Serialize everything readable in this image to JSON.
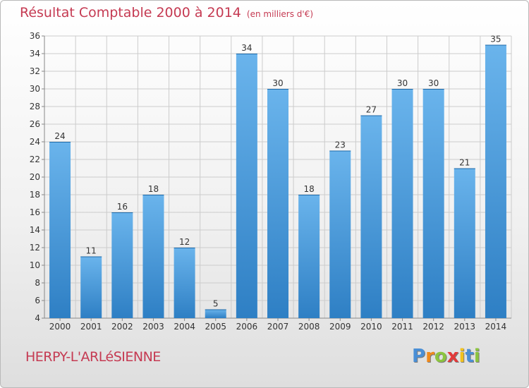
{
  "title": "Résultat Comptable 2000 à 2014",
  "subtitle": "(en milliers d'€)",
  "location": "HERPY-L'ARLéSIENNE",
  "logo": {
    "letters": [
      "P",
      "r",
      "o",
      "x",
      "i",
      "t",
      "i"
    ],
    "colors": [
      "#4a8fd6",
      "#f08a1c",
      "#8cc43f",
      "#e23a3a",
      "#f2c21e",
      "#4a8fd6",
      "#8cc43f"
    ]
  },
  "colors": {
    "bar_light": "#6ab4ec",
    "bar_dark": "#2e7fc4",
    "grid": "#cccccc",
    "text": "#333333",
    "accent": "#c53a52"
  },
  "chart_data": {
    "type": "bar",
    "title": "Résultat Comptable 2000 à 2014",
    "xlabel": "",
    "ylabel": "",
    "categories": [
      "2000",
      "2001",
      "2002",
      "2003",
      "2004",
      "2005",
      "2006",
      "2007",
      "2008",
      "2009",
      "2010",
      "2011",
      "2012",
      "2013",
      "2014"
    ],
    "values": [
      24,
      11,
      16,
      18,
      12,
      5,
      34,
      30,
      18,
      23,
      27,
      30,
      30,
      21,
      35
    ],
    "ylim": [
      4,
      36
    ],
    "yticks": [
      4,
      6,
      8,
      10,
      12,
      14,
      16,
      18,
      20,
      22,
      24,
      26,
      28,
      30,
      32,
      34,
      36
    ],
    "grid": true
  }
}
